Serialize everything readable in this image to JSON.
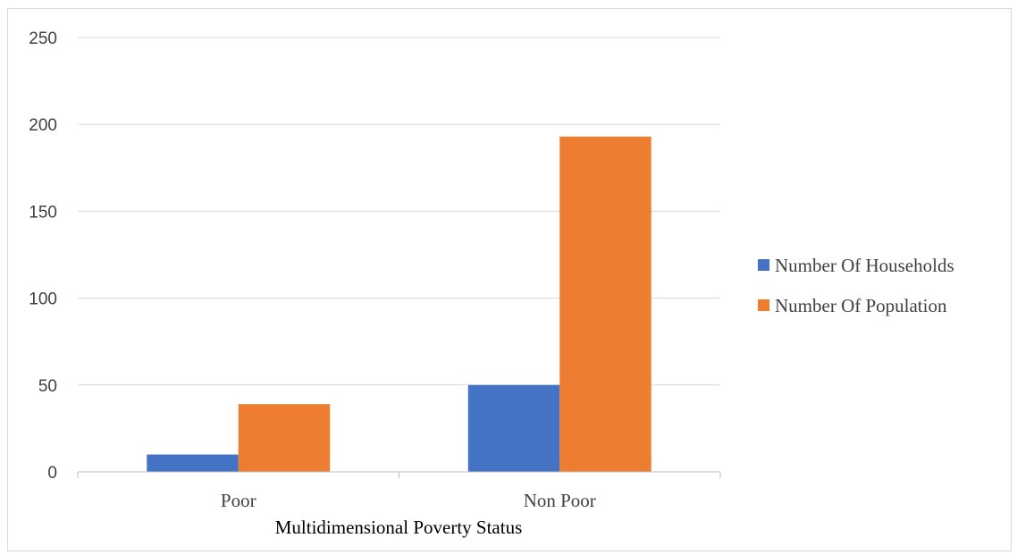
{
  "chart_data": {
    "type": "bar",
    "categories": [
      "Poor",
      "Non Poor"
    ],
    "series": [
      {
        "name": "Number Of Households",
        "values": [
          10,
          50
        ],
        "color": "#4472c4"
      },
      {
        "name": "Number Of Population",
        "values": [
          39,
          193
        ],
        "color": "#ed7d31"
      }
    ],
    "title": "",
    "xlabel": "Multidimensional Poverty Status",
    "ylabel": "",
    "ylim": [
      0,
      250
    ],
    "yticks": [
      0,
      50,
      100,
      150,
      200,
      250
    ],
    "grid": true,
    "legend_position": "right"
  }
}
